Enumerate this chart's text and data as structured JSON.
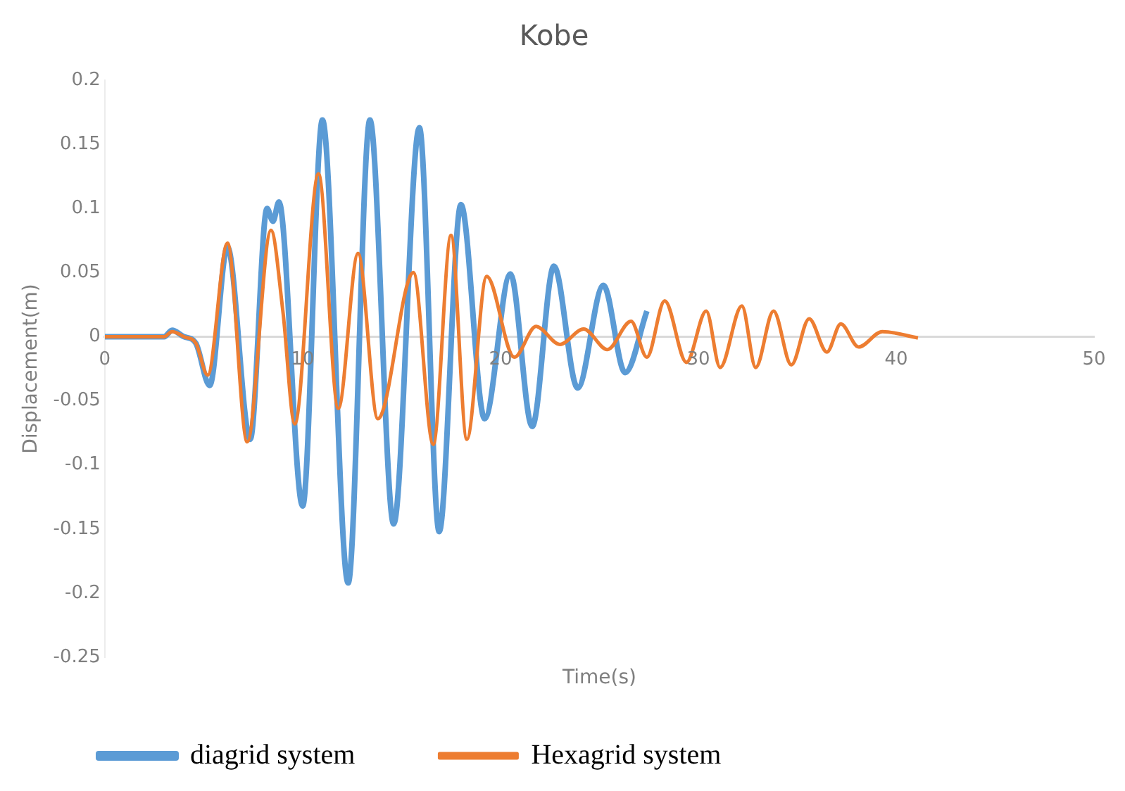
{
  "chart_data": {
    "type": "line",
    "title": "Kobe",
    "xlabel": "Time(s)",
    "ylabel": "Displacement(m)",
    "xlim": [
      0,
      50
    ],
    "xticks": [
      0,
      10,
      20,
      30,
      40,
      50
    ],
    "ylim": [
      -0.25,
      0.2
    ],
    "yticks": [
      -0.25,
      -0.2,
      -0.15,
      -0.1,
      -0.05,
      0,
      0.05,
      0.1,
      0.15,
      0.2
    ],
    "grid": false,
    "legend": "bottom",
    "marker": "none",
    "line_style": "solid",
    "series": [
      {
        "name": "diagrid system",
        "color": "#5b9bd5",
        "x": [
          0,
          3,
          3.4,
          4,
          4.6,
          5.3,
          6.2,
          7.35,
          8.2,
          8.5,
          8.8,
          10,
          11,
          12.3,
          13.4,
          14.6,
          15.9,
          16.9,
          18,
          19.2,
          20.5,
          21.6,
          22.7,
          23.9,
          25.2,
          26.3,
          27.4
        ],
        "values": [
          0,
          0,
          0.005,
          0,
          -0.005,
          -0.038,
          0.07,
          -0.08,
          0.1,
          0.09,
          0.105,
          -0.132,
          0.169,
          -0.192,
          0.169,
          -0.146,
          0.163,
          -0.152,
          0.103,
          -0.064,
          0.049,
          -0.07,
          0.055,
          -0.04,
          0.04,
          -0.028,
          0.02
        ]
      },
      {
        "name": "Hexagrid system",
        "color": "#ed7d31",
        "x": [
          0,
          3,
          3.4,
          4,
          4.6,
          5.2,
          6.2,
          7.2,
          8.4,
          9,
          9.6,
          10.8,
          11.8,
          12.8,
          13.8,
          15.6,
          16.6,
          17.5,
          18.3,
          19.3,
          20.7,
          21.8,
          23,
          24.2,
          25.4,
          26.6,
          27.4,
          28.3,
          29.4,
          30.4,
          31.1,
          32.2,
          32.9,
          33.8,
          34.7,
          35.6,
          36.5,
          37.2,
          38.1,
          39.3,
          41.1
        ],
        "values": [
          0,
          0,
          0.004,
          0,
          -0.005,
          -0.03,
          0.073,
          -0.082,
          0.083,
          0.02,
          -0.068,
          0.127,
          -0.056,
          0.065,
          -0.064,
          0.05,
          -0.084,
          0.079,
          -0.08,
          0.047,
          -0.016,
          0.008,
          -0.006,
          0.006,
          -0.01,
          0.012,
          -0.016,
          0.028,
          -0.02,
          0.02,
          -0.024,
          0.024,
          -0.024,
          0.02,
          -0.022,
          0.014,
          -0.012,
          0.01,
          -0.008,
          0.004,
          -0.001
        ]
      }
    ]
  }
}
